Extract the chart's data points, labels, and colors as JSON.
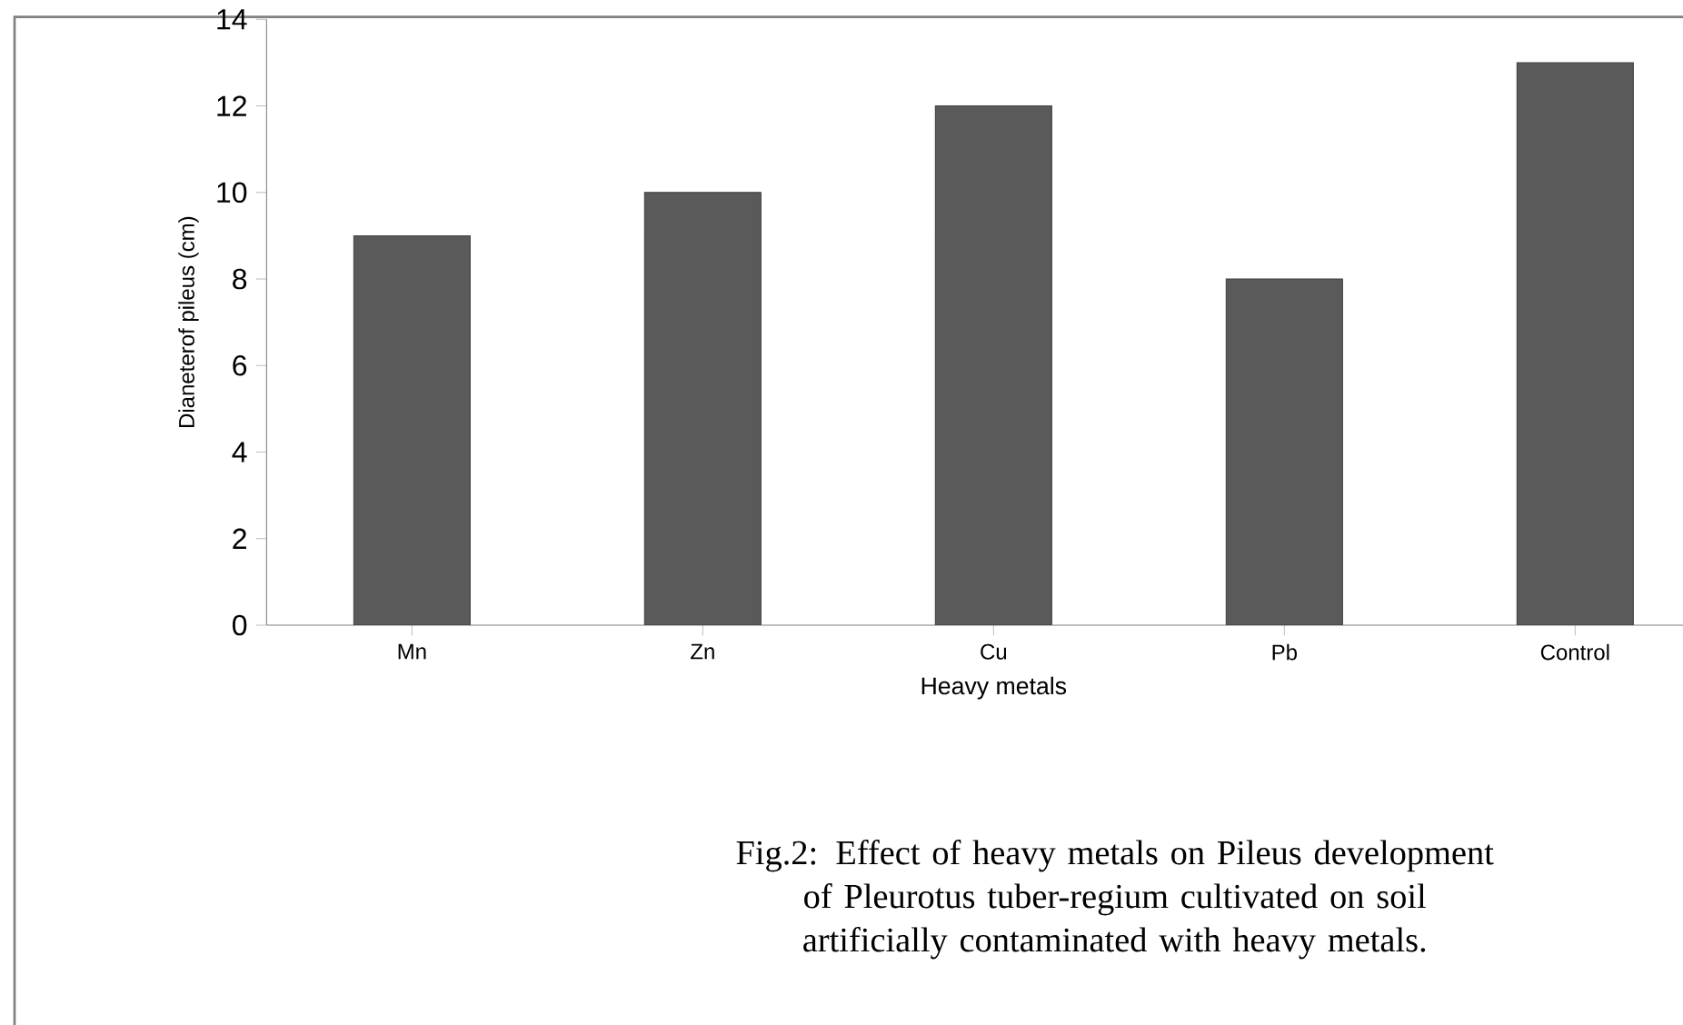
{
  "chart_data": {
    "type": "bar",
    "xlabel": "Heavy metals",
    "ylabel": "Dianeterof pileus (cm)",
    "categories": [
      "Mn",
      "Zn",
      "Cu",
      "Pb",
      "Control"
    ],
    "values": [
      9,
      10,
      12,
      8,
      13
    ],
    "color": "#5a5a5a",
    "ylim": [
      0,
      14
    ],
    "yticks": [
      0,
      2,
      4,
      6,
      8,
      10,
      12,
      14
    ],
    "grid": false,
    "annotations": [
      "Fig.2: Effect of heavy metals on Pileus development of Pleurotus tuber-regium cultivated on soil artificially contaminated with heavy metals."
    ]
  }
}
